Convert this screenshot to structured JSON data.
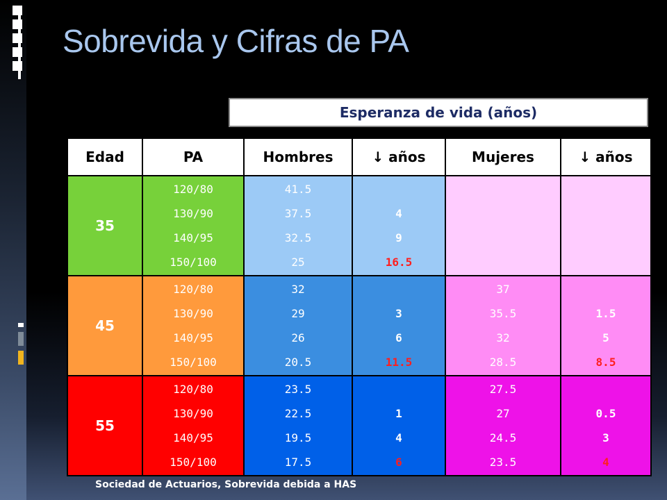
{
  "slide": {
    "title": "Sobrevida y Cifras de PA",
    "subtitle": "Esperanza de vida (años)",
    "footer": "Sociedad de Actuarios, Sobrevida debida a HAS"
  },
  "colors": {
    "title": "#a9c7ee",
    "subtitle_text": "#1d2b64",
    "age35": "#77d13a",
    "age45": "#ff9a3c",
    "age55": "#ff0000",
    "pa35": "#77d13a",
    "pa45": "#ff9a3c",
    "pa55": "#ff0000",
    "hombres35": "#9ccaf6",
    "hombres45": "#3b8ee0",
    "hombres55": "#0060e8",
    "mujeres35": "#ffccff",
    "mujeres45": "#ff8cf5",
    "mujeres55": "#ee12e8",
    "highlight": "#ff1e1e"
  },
  "table": {
    "headers": [
      "Edad",
      "PA",
      "Hombres",
      "↓ años",
      "Mujeres",
      "↓ años"
    ],
    "rows": [
      {
        "edad": "35",
        "pa": [
          "120/80",
          "130/90",
          "140/95",
          "150/100"
        ],
        "hombres": [
          "41.5",
          "37.5",
          "32.5",
          "25"
        ],
        "h_anos": [
          "4",
          "9",
          "16.5"
        ],
        "mujeres": [],
        "m_anos": []
      },
      {
        "edad": "45",
        "pa": [
          "120/80",
          "130/90",
          "140/95",
          "150/100"
        ],
        "hombres": [
          "32",
          "29",
          "26",
          "20.5"
        ],
        "h_anos": [
          "3",
          "6",
          "11.5"
        ],
        "mujeres": [
          "37",
          "35.5",
          "32",
          "28.5"
        ],
        "m_anos": [
          "1.5",
          "5",
          "8.5"
        ]
      },
      {
        "edad": "55",
        "pa": [
          "120/80",
          "130/90",
          "140/95",
          "150/100"
        ],
        "hombres": [
          "23.5",
          "22.5",
          "19.5",
          "17.5"
        ],
        "h_anos": [
          "1",
          "4",
          "6"
        ],
        "mujeres": [
          "27.5",
          "27",
          "24.5",
          "23.5"
        ],
        "m_anos": [
          "0.5",
          "3",
          "4"
        ]
      }
    ]
  }
}
